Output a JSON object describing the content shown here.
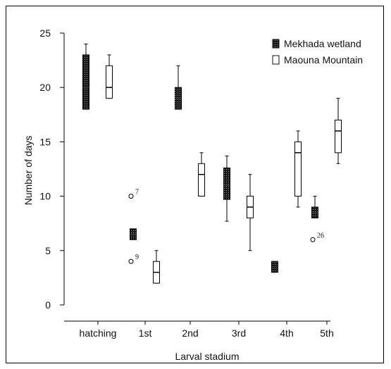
{
  "chart_data": {
    "type": "boxplot",
    "title": "",
    "xlabel": "Larval stadium",
    "ylabel": "Number of days",
    "categories": [
      "hatching",
      "1st",
      "2nd",
      "3rd",
      "4th",
      "5th"
    ],
    "ylim": [
      0,
      25
    ],
    "yticks": [
      0,
      5,
      10,
      15,
      20,
      25
    ],
    "grid": false,
    "legend_position": "top-right",
    "series": [
      {
        "name": "Mekhada wetland",
        "pattern": "dotted-dark",
        "boxes": [
          {
            "category": "hatching",
            "whisker_low": 18,
            "q1": 18,
            "median": 20,
            "q3": 23,
            "whisker_high": 24
          },
          {
            "category": "1st",
            "whisker_low": 6,
            "q1": 6,
            "median": 6.5,
            "q3": 7,
            "whisker_high": 7
          },
          {
            "category": "2nd",
            "whisker_low": 18,
            "q1": 18,
            "median": 19,
            "q3": 20,
            "whisker_high": 22
          },
          {
            "category": "3rd",
            "whisker_low": 7.7,
            "q1": 9.7,
            "median": 11,
            "q3": 12.6,
            "whisker_high": 13.7
          },
          {
            "category": "4th",
            "whisker_low": 3,
            "q1": 3,
            "median": 3.5,
            "q3": 4,
            "whisker_high": 4
          },
          {
            "category": "5th",
            "whisker_low": 8,
            "q1": 8,
            "median": 8.5,
            "q3": 9,
            "whisker_high": 10
          }
        ],
        "outliers": [
          {
            "category": "1st",
            "value": 10,
            "label": "7"
          },
          {
            "category": "1st",
            "value": 4,
            "label": "9"
          },
          {
            "category": "5th",
            "value": 6,
            "label": "26"
          }
        ]
      },
      {
        "name": "Maouna Mountain",
        "pattern": "white",
        "boxes": [
          {
            "category": "hatching",
            "whisker_low": 19,
            "q1": 19,
            "median": 20,
            "q3": 22,
            "whisker_high": 23
          },
          {
            "category": "1st",
            "whisker_low": 2,
            "q1": 2,
            "median": 3,
            "q3": 4,
            "whisker_high": 5
          },
          {
            "category": "2nd",
            "whisker_low": 10,
            "q1": 10,
            "median": 12,
            "q3": 13,
            "whisker_high": 14
          },
          {
            "category": "3rd",
            "whisker_low": 5,
            "q1": 8,
            "median": 9,
            "q3": 10,
            "whisker_high": 12
          },
          {
            "category": "4th",
            "whisker_low": 9,
            "q1": 10,
            "median": 14,
            "q3": 15,
            "whisker_high": 16
          },
          {
            "category": "5th",
            "whisker_low": 13,
            "q1": 14,
            "median": 16,
            "q3": 17,
            "whisker_high": 19
          }
        ],
        "outliers": []
      }
    ]
  }
}
